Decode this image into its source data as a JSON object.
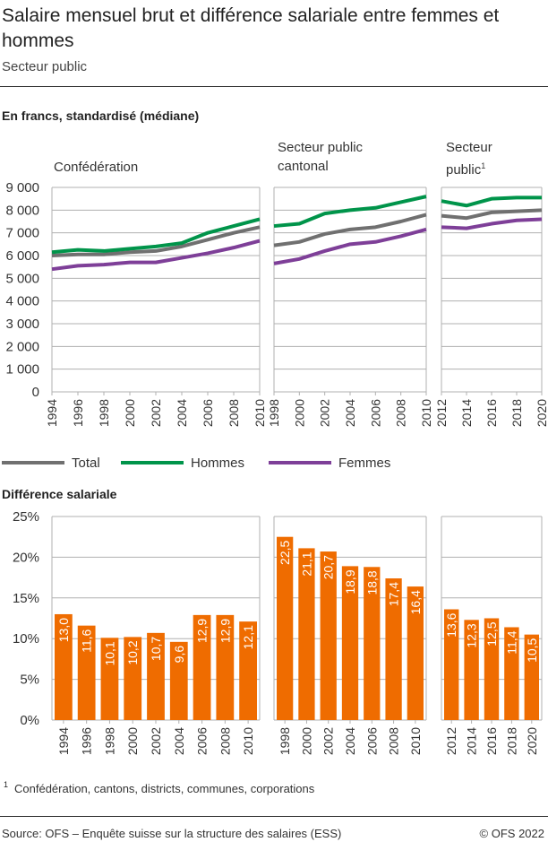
{
  "title": "Salaire mensuel brut et différence salariale entre femmes et hommes",
  "subtitle": "Secteur public",
  "footnote_marker": "1",
  "footnote": "Confédération, cantons, districts, communes, corporations",
  "source": "Source: OFS – Enquête suisse sur la structure des salaires (ESS)",
  "copyright": "© OFS 2022",
  "colors": {
    "total": "#707070",
    "hommes": "#00944a",
    "femmes": "#7e3f98",
    "bars": "#ef6c00",
    "grid": "#b0b0b0"
  },
  "chart_data": [
    {
      "type": "line",
      "title": "En francs, standardisé (médiane)",
      "ylim": [
        0,
        9000
      ],
      "yticks": [
        "0",
        "1 000",
        "2 000",
        "3 000",
        "4 000",
        "5 000",
        "6 000",
        "7 000",
        "8 000",
        "9 000"
      ],
      "legend": {
        "placement": "bottom",
        "entries": [
          "Total",
          "Hommes",
          "Femmes"
        ]
      },
      "panels": [
        {
          "title": "Confédération",
          "sup": "",
          "x": [
            "1994",
            "1996",
            "1998",
            "2000",
            "2002",
            "2004",
            "2006",
            "2008",
            "2010"
          ],
          "series": [
            {
              "name": "Total",
              "values": [
                6000,
                6050,
                6050,
                6150,
                6200,
                6400,
                6700,
                7000,
                7250
              ]
            },
            {
              "name": "Hommes",
              "values": [
                6150,
                6250,
                6200,
                6300,
                6400,
                6550,
                7000,
                7300,
                7600
              ]
            },
            {
              "name": "Femmes",
              "values": [
                5400,
                5550,
                5600,
                5700,
                5700,
                5900,
                6100,
                6350,
                6650
              ]
            }
          ]
        },
        {
          "title": "Secteur public cantonal",
          "sup": "",
          "x": [
            "1998",
            "2000",
            "2002",
            "2004",
            "2006",
            "2008",
            "2010"
          ],
          "series": [
            {
              "name": "Total",
              "values": [
                6450,
                6600,
                6950,
                7150,
                7250,
                7500,
                7800
              ]
            },
            {
              "name": "Hommes",
              "values": [
                7300,
                7400,
                7850,
                8000,
                8100,
                8350,
                8600
              ]
            },
            {
              "name": "Femmes",
              "values": [
                5650,
                5850,
                6200,
                6500,
                6600,
                6850,
                7150
              ]
            }
          ]
        },
        {
          "title": "Secteur public",
          "sup": "1",
          "x": [
            "2012",
            "2014",
            "2016",
            "2018",
            "2020"
          ],
          "series": [
            {
              "name": "Total",
              "values": [
                7750,
                7650,
                7900,
                7950,
                8000
              ]
            },
            {
              "name": "Hommes",
              "values": [
                8400,
                8200,
                8500,
                8550,
                8550
              ]
            },
            {
              "name": "Femmes",
              "values": [
                7250,
                7200,
                7400,
                7550,
                7600
              ]
            }
          ]
        }
      ]
    },
    {
      "type": "bar",
      "title": "Différence salariale",
      "ylim": [
        0,
        25
      ],
      "yticks": [
        "0%",
        "5%",
        "10%",
        "15%",
        "20%",
        "25%"
      ],
      "panels": [
        {
          "x": [
            "1994",
            "1996",
            "1998",
            "2000",
            "2002",
            "2004",
            "2006",
            "2008",
            "2010"
          ],
          "values": [
            13.0,
            11.6,
            10.1,
            10.2,
            10.7,
            9.6,
            12.9,
            12.9,
            12.1
          ],
          "labels": [
            "13,0",
            "11,6",
            "10,1",
            "10,2",
            "10,7",
            "9,6",
            "12,9",
            "12,9",
            "12,1"
          ]
        },
        {
          "x": [
            "1998",
            "2000",
            "2002",
            "2004",
            "2006",
            "2008",
            "2010"
          ],
          "values": [
            22.5,
            21.1,
            20.7,
            18.9,
            18.8,
            17.4,
            16.4
          ],
          "labels": [
            "22,5",
            "21,1",
            "20,7",
            "18,9",
            "18,8",
            "17,4",
            "16,4"
          ]
        },
        {
          "x": [
            "2012",
            "2014",
            "2016",
            "2018",
            "2020"
          ],
          "values": [
            13.6,
            12.3,
            12.5,
            11.4,
            10.5
          ],
          "labels": [
            "13,6",
            "12,3",
            "12,5",
            "11,4",
            "10,5"
          ]
        }
      ]
    }
  ]
}
